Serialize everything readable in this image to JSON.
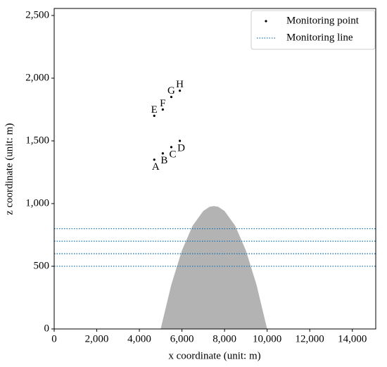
{
  "chart_data": {
    "type": "scatter",
    "xlabel": "x coordinate (unit: m)",
    "ylabel": "z coordinate (unit: m)",
    "xlim": [
      0,
      15100
    ],
    "ylim": [
      0,
      2556
    ],
    "xticks": [
      0,
      {
        "value": 2000,
        "label": "2,000"
      },
      {
        "value": 4000,
        "label": "4,000"
      },
      {
        "value": 6000,
        "label": "6,000"
      },
      {
        "value": 8000,
        "label": "8,000"
      },
      {
        "value": 10000,
        "label": "10,000"
      },
      {
        "value": 12000,
        "label": "12,000"
      },
      {
        "value": 14000,
        "label": "14,000"
      }
    ],
    "yticks": [
      0,
      500,
      {
        "value": 1000,
        "label": "1,000"
      },
      {
        "value": 1500,
        "label": "1,500"
      },
      {
        "value": 2000,
        "label": "2,000"
      },
      {
        "value": 2500,
        "label": "2,500"
      }
    ],
    "terrain": {
      "color": "#b3b3b3",
      "x": [
        5000,
        5500,
        6000,
        6500,
        7000,
        7300,
        7500,
        7700,
        8000,
        8500,
        9000,
        9500,
        10000
      ],
      "values": [
        0,
        353,
        627,
        823,
        941,
        975,
        980,
        975,
        941,
        823,
        627,
        353,
        0
      ]
    },
    "points": {
      "name": "Monitoring point",
      "color": "#000000",
      "labels": [
        "A",
        "B",
        "C",
        "D",
        "E",
        "F",
        "G",
        "H"
      ],
      "x": [
        4700,
        5100,
        5500,
        5900,
        4700,
        5100,
        5500,
        5900
      ],
      "values": [
        1350,
        1400,
        1450,
        1500,
        1700,
        1750,
        1850,
        1900
      ]
    },
    "lines": {
      "name": "Monitoring line",
      "color": "#1f77b4",
      "values": [
        500,
        600,
        700,
        800
      ]
    },
    "legend": "upper right"
  }
}
